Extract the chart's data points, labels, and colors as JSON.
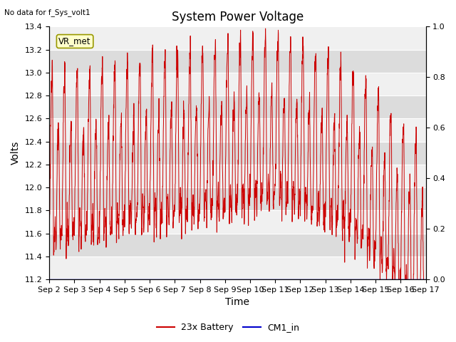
{
  "title": "System Power Voltage",
  "no_data_label": "No data for f_Sys_volt1",
  "ylabel": "Volts",
  "xlabel": "Time",
  "ylim_left": [
    11.2,
    13.4
  ],
  "ylim_right": [
    0.0,
    1.0
  ],
  "yticks_left": [
    11.2,
    11.4,
    11.6,
    11.8,
    12.0,
    12.2,
    12.4,
    12.6,
    12.8,
    13.0,
    13.2,
    13.4
  ],
  "yticks_right": [
    0.0,
    0.2,
    0.4,
    0.6,
    0.8,
    1.0
  ],
  "xtick_labels": [
    "Sep 2",
    "Sep 3",
    "Sep 4",
    "Sep 5",
    "Sep 6",
    "Sep 7",
    "Sep 8",
    "Sep 9",
    "Sep 10",
    "Sep 11",
    "Sep 12",
    "Sep 13",
    "Sep 14",
    "Sep 15",
    "Sep 16",
    "Sep 17"
  ],
  "vr_met_label": "VR_met",
  "legend_entries": [
    "23x Battery",
    "CM1_in"
  ],
  "battery_color": "#cc0000",
  "cm1_color": "#0000cc",
  "bg_light": "#f0f0f0",
  "bg_dark": "#dcdcdc",
  "title_fontsize": 12,
  "axis_label_fontsize": 10,
  "tick_fontsize": 8
}
